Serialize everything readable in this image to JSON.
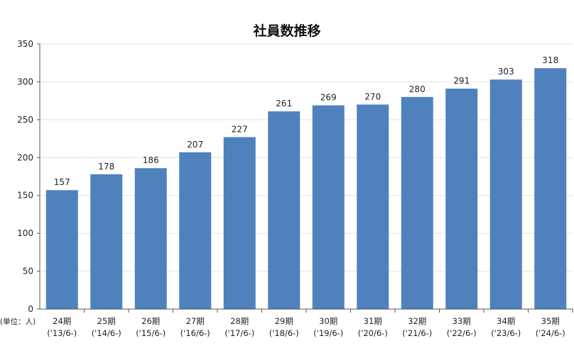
{
  "chart_data": {
    "type": "bar",
    "title": "社員数推移",
    "unit_label": "(単位：人)",
    "categories": [
      "24期",
      "25期",
      "26期",
      "27期",
      "28期",
      "29期",
      "30期",
      "31期",
      "32期",
      "33期",
      "34期",
      "35期"
    ],
    "sub_categories": [
      "('13/6-)",
      "('14/6-)",
      "('15/6-)",
      "('16/6-)",
      "('17/6-)",
      "('18/6-)",
      "('19/6-)",
      "('20/6-)",
      "('21/6-)",
      "('22/6-)",
      "('23/6-)",
      "('24/6-)"
    ],
    "values": [
      157,
      178,
      186,
      207,
      227,
      261,
      269,
      270,
      280,
      291,
      303,
      318
    ],
    "ylim": [
      0,
      350
    ],
    "yticks": [
      "0",
      "50",
      "100",
      "150",
      "200",
      "250",
      "300",
      "350"
    ],
    "grid": true,
    "bar_color": "#4f81bd"
  }
}
